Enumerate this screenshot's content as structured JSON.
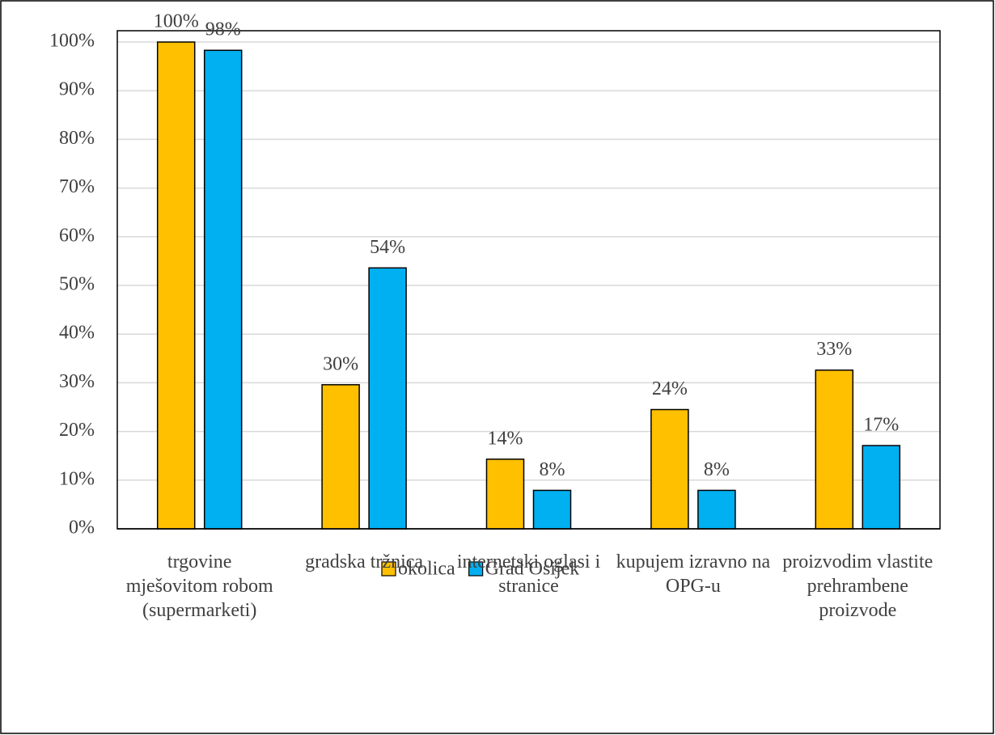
{
  "chart_data": {
    "type": "bar",
    "categories": [
      "trgovine mješovitom robom (supermarketi)",
      "gradska tržnica",
      "internetski oglasi i stranice",
      "kupujem izravno na OPG-u",
      "proizvodim vlastite prehrambene proizvode"
    ],
    "series": [
      {
        "name": "okolica",
        "color": "#FFC000",
        "values": [
          100,
          29.6,
          14.3,
          24.5,
          32.6
        ],
        "value_labels": [
          "100%",
          "30%",
          "14%",
          "24%",
          "33%"
        ]
      },
      {
        "name": "Grad Osijek",
        "color": "#00B0F0",
        "values": [
          98.3,
          53.6,
          7.9,
          7.9,
          17.1
        ],
        "value_labels": [
          "98%",
          "54%",
          "8%",
          "8%",
          "17%"
        ]
      }
    ],
    "ylim": [
      0,
      100
    ],
    "yticks": [
      {
        "value": 0,
        "label": "0%"
      },
      {
        "value": 10,
        "label": "10%"
      },
      {
        "value": 20,
        "label": "20%"
      },
      {
        "value": 30,
        "label": "30%"
      },
      {
        "value": 40,
        "label": "40%"
      },
      {
        "value": 50,
        "label": "50%"
      },
      {
        "value": 60,
        "label": "60%"
      },
      {
        "value": 70,
        "label": "70%"
      },
      {
        "value": 80,
        "label": "80%"
      },
      {
        "value": 90,
        "label": "90%"
      },
      {
        "value": 100,
        "label": "100%"
      }
    ],
    "grid": true,
    "legend": "bottom"
  }
}
